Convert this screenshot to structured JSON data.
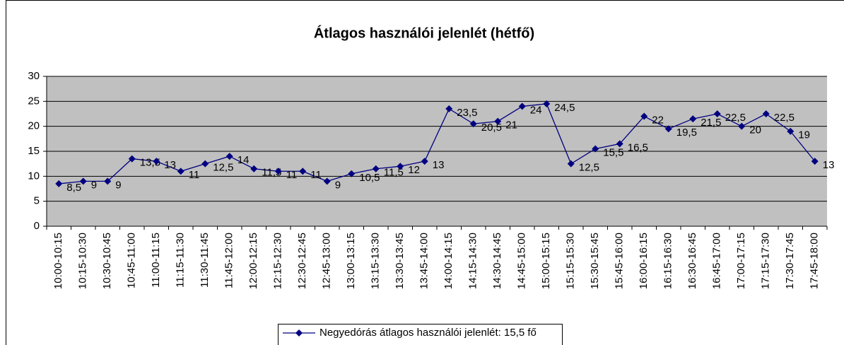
{
  "chart_data": {
    "type": "line",
    "title": "Átlagos használói jelenlét (hétfő)",
    "categories": [
      "10:00-10:15",
      "10:15-10:30",
      "10:30-10:45",
      "10:45-11:00",
      "11:00-11:15",
      "11:15-11:30",
      "11:30-11:45",
      "11:45-12:00",
      "12:00-12:15",
      "12:15-12:30",
      "12:30-12:45",
      "12:45-13:00",
      "13:00-13:15",
      "13:15-13:30",
      "13:30-13:45",
      "13:45-14:00",
      "14:00-14:15",
      "14:15-14:30",
      "14:30-14:45",
      "14:45-15:00",
      "15:00-15:15",
      "15:15-15:30",
      "15:30-15:45",
      "15:45-16:00",
      "16:00-16:15",
      "16:15-16:30",
      "16:30-16:45",
      "16:45-17:00",
      "17:00-17:15",
      "17:15-17:30",
      "17:30-17:45",
      "17:45-18:00"
    ],
    "series": [
      {
        "name": "Negyedórás átlagos használói jelenlét: 15,5 fő",
        "color": "#000080",
        "values": [
          8.5,
          9,
          9,
          13.5,
          13,
          11,
          12.5,
          14,
          11.5,
          11,
          11,
          9,
          10.5,
          11.5,
          12,
          13,
          23.5,
          20.5,
          21,
          24,
          24.5,
          12.5,
          15.5,
          16.5,
          22,
          19.5,
          21.5,
          22.5,
          20,
          22.5,
          19,
          13
        ],
        "value_labels": [
          "8,5",
          "9",
          "9",
          "13,5",
          "13",
          "11",
          "12,5",
          "14",
          "11,5",
          "11",
          "11",
          "9",
          "10,5",
          "11,5",
          "12",
          "13",
          "23,5",
          "20,5",
          "21",
          "24",
          "24,5",
          "12,5",
          "15,5",
          "16,5",
          "22",
          "19,5",
          "21,5",
          "22,5",
          "20",
          "22,5",
          "19",
          "13"
        ]
      }
    ],
    "ylim": [
      0,
      30
    ],
    "yticks": [
      0,
      5,
      10,
      15,
      20,
      25,
      30
    ],
    "grid": true,
    "legend": "bottom"
  }
}
